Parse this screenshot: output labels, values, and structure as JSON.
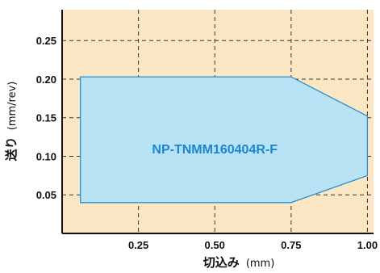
{
  "chart_data": {
    "type": "area",
    "xlabel": "切込み",
    "xlabel_unit": "(mm)",
    "ylabel": "送り",
    "ylabel_unit": "(mm/rev)",
    "xlim": [
      0,
      1.02
    ],
    "ylim": [
      0,
      0.29
    ],
    "x_ticks": [
      {
        "value": 0.25,
        "label": "0.25"
      },
      {
        "value": 0.5,
        "label": "0.50"
      },
      {
        "value": 0.75,
        "label": "0.75"
      },
      {
        "value": 1.0,
        "label": "1.00"
      }
    ],
    "y_ticks": [
      {
        "value": 0.05,
        "label": "0.05"
      },
      {
        "value": 0.1,
        "label": "0.10"
      },
      {
        "value": 0.15,
        "label": "0.15"
      },
      {
        "value": 0.2,
        "label": "0.20"
      },
      {
        "value": 0.25,
        "label": "0.25"
      }
    ],
    "grid": true,
    "region": {
      "name": "NP-TNMM160404R-F",
      "points": [
        [
          0.06,
          0.04
        ],
        [
          0.75,
          0.04
        ],
        [
          1.0,
          0.075
        ],
        [
          1.0,
          0.152
        ],
        [
          0.75,
          0.203
        ],
        [
          0.06,
          0.203
        ]
      ],
      "label_position": [
        0.5,
        0.11
      ]
    },
    "colors": {
      "plot_background": "#fbe7c4",
      "region_fill": "#b7e3f5",
      "region_stroke": "#2b8fd0",
      "region_label": "#1a86cf",
      "grid": "#333333",
      "axis": "#111111"
    }
  }
}
